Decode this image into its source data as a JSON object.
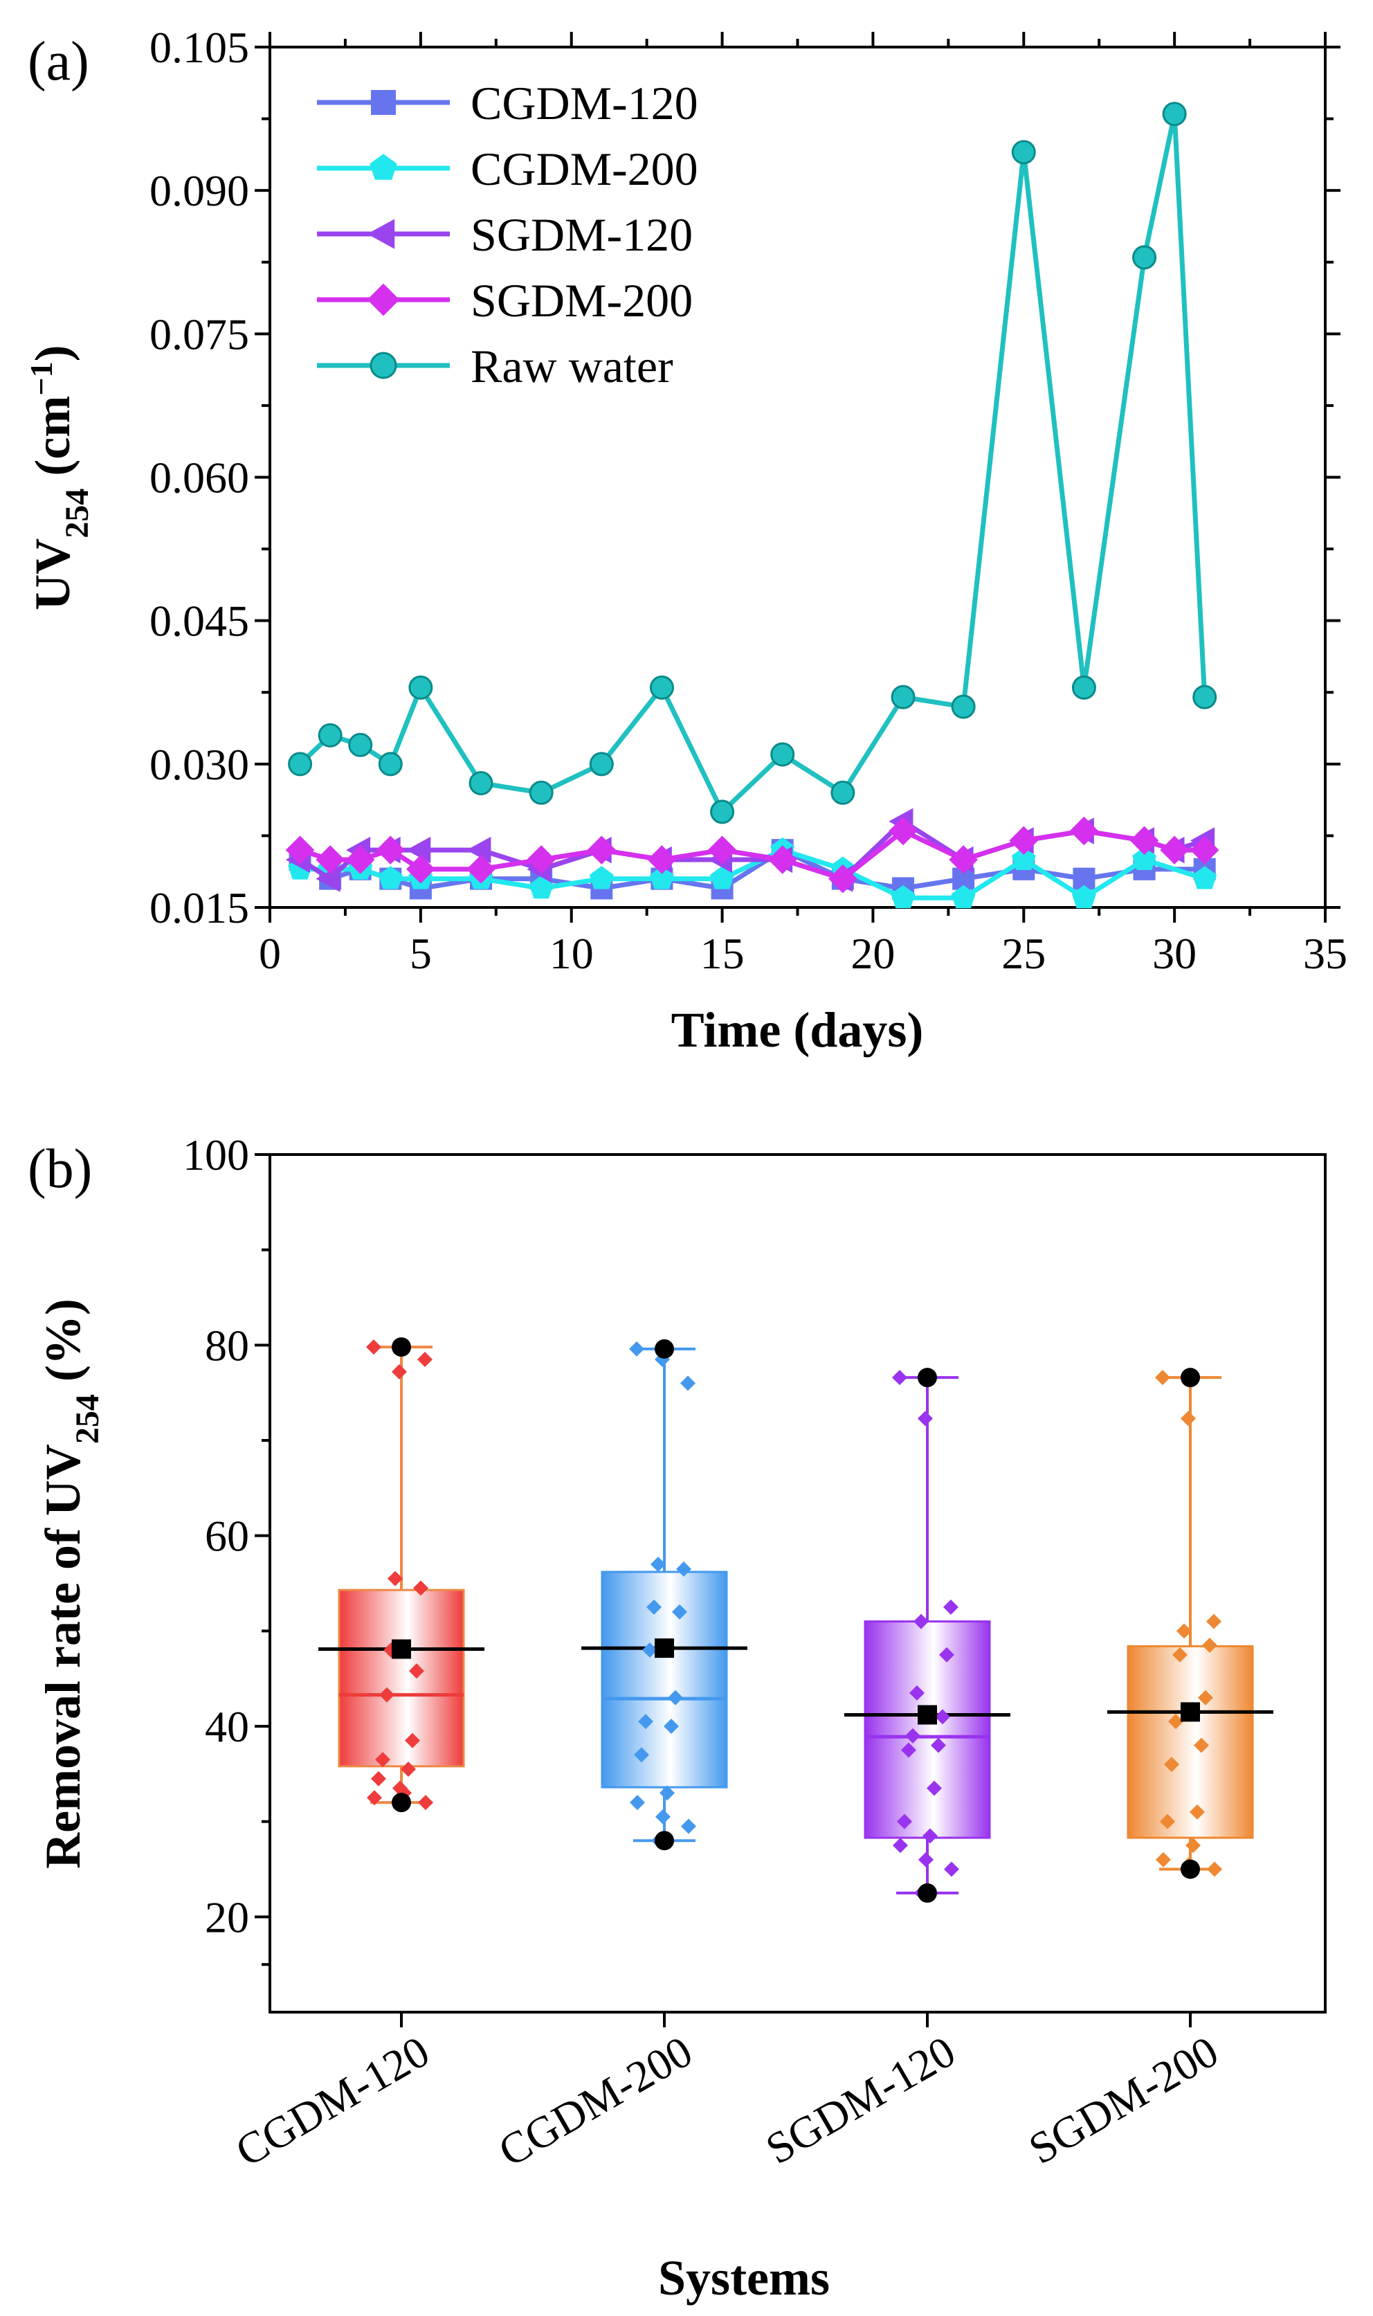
{
  "chart_data": [
    {
      "type": "line",
      "panel_label": "(a)",
      "xlabel": "Time (days)",
      "ylabel": {
        "main": "UV",
        "sub": "254",
        "unit_open": " (cm",
        "unit_sup": "−1",
        "unit_close": ")"
      },
      "xlim": [
        0,
        35
      ],
      "ylim": [
        0.015,
        0.105
      ],
      "xticks": [
        0,
        5,
        10,
        15,
        20,
        25,
        30,
        35
      ],
      "yticks": [
        0.015,
        0.03,
        0.045,
        0.06,
        0.075,
        0.09,
        0.105
      ],
      "ytick_labels": [
        "0.015",
        "0.030",
        "0.045",
        "0.060",
        "0.075",
        "0.090",
        "0.105"
      ],
      "legend_position": "top-left",
      "series": [
        {
          "name": "CGDM-120",
          "color": "#6675ee",
          "marker": "square",
          "x": [
            1,
            2,
            3,
            4,
            5,
            7,
            9,
            11,
            13,
            15,
            17,
            19,
            21,
            23,
            25,
            27,
            29,
            31
          ],
          "y": [
            0.02,
            0.018,
            0.019,
            0.018,
            0.017,
            0.018,
            0.018,
            0.017,
            0.018,
            0.017,
            0.021,
            0.018,
            0.017,
            0.018,
            0.019,
            0.018,
            0.019,
            0.019
          ]
        },
        {
          "name": "CGDM-200",
          "color": "#22e8ee",
          "marker": "pentagon",
          "x": [
            1,
            2,
            3,
            4,
            5,
            7,
            9,
            11,
            13,
            15,
            17,
            19,
            21,
            23,
            25,
            27,
            29,
            31
          ],
          "y": [
            0.019,
            0.019,
            0.019,
            0.018,
            0.018,
            0.018,
            0.017,
            0.018,
            0.018,
            0.018,
            0.021,
            0.019,
            0.016,
            0.016,
            0.02,
            0.016,
            0.02,
            0.018
          ]
        },
        {
          "name": "SGDM-120",
          "color": "#9a44ee",
          "marker": "triangle-left",
          "x": [
            1,
            2,
            3,
            4,
            5,
            7,
            9,
            11,
            13,
            15,
            17,
            19,
            21,
            23,
            25,
            27,
            29,
            30,
            31
          ],
          "y": [
            0.02,
            0.018,
            0.021,
            0.021,
            0.021,
            0.021,
            0.019,
            0.021,
            0.02,
            0.02,
            0.02,
            0.018,
            0.024,
            0.02,
            0.022,
            0.023,
            0.022,
            0.021,
            0.022
          ]
        },
        {
          "name": "SGDM-200",
          "color": "#d530ee",
          "marker": "diamond",
          "x": [
            1,
            2,
            3,
            4,
            5,
            7,
            9,
            11,
            13,
            15,
            17,
            19,
            21,
            23,
            25,
            27,
            29,
            30,
            31
          ],
          "y": [
            0.021,
            0.02,
            0.02,
            0.021,
            0.019,
            0.019,
            0.02,
            0.021,
            0.02,
            0.021,
            0.02,
            0.018,
            0.023,
            0.02,
            0.022,
            0.023,
            0.022,
            0.021,
            0.021
          ]
        },
        {
          "name": "Raw water",
          "color": "#20c0c0",
          "marker": "circle",
          "x": [
            1,
            2,
            3,
            4,
            5,
            7,
            9,
            11,
            13,
            15,
            17,
            19,
            21,
            23,
            25,
            27,
            29,
            30,
            31
          ],
          "y": [
            0.03,
            0.033,
            0.032,
            0.03,
            0.038,
            0.028,
            0.027,
            0.03,
            0.038,
            0.025,
            0.031,
            0.027,
            0.037,
            0.036,
            0.094,
            0.038,
            0.083,
            0.098,
            0.037
          ]
        }
      ]
    },
    {
      "type": "box",
      "panel_label": "(b)",
      "xlabel": "Systems",
      "ylabel": {
        "main": "Removal rate of UV",
        "sub": "254",
        "unit_open": " (%)"
      },
      "ylim": [
        10,
        100
      ],
      "yticks": [
        20,
        40,
        60,
        80,
        100
      ],
      "categories": [
        "CGDM-120",
        "CGDM-200",
        "SGDM-120",
        "SGDM-200"
      ],
      "boxes": [
        {
          "name": "CGDM-120",
          "color": "#ee3b3b",
          "whisker_color": "#ee8844",
          "min": 32,
          "q1": 35.8,
          "median": 43.3,
          "mean": 48.1,
          "q3": 54.3,
          "max": 79.8,
          "points": [
            79.8,
            77.2,
            78.5,
            55.5,
            54.5,
            48.0,
            45.8,
            43.3,
            38.5,
            36.5,
            35.5,
            34.5,
            33.0,
            32.5,
            33.5,
            32.0
          ]
        },
        {
          "name": "CGDM-200",
          "color": "#4499ee",
          "whisker_color": "#4499ee",
          "min": 28,
          "q1": 33.6,
          "median": 42.9,
          "mean": 48.2,
          "q3": 56.2,
          "max": 79.6,
          "points": [
            79.6,
            78.5,
            76.0,
            57.0,
            56.5,
            52.5,
            52.0,
            48.0,
            43.0,
            40.5,
            40.0,
            37.0,
            33.0,
            32.0,
            30.5,
            29.5,
            28.0
          ]
        },
        {
          "name": "SGDM-120",
          "color": "#9933ee",
          "whisker_color": "#9933ee",
          "min": 22.5,
          "q1": 28.3,
          "median": 38.9,
          "mean": 41.2,
          "q3": 51.0,
          "max": 76.6,
          "points": [
            76.6,
            72.3,
            52.5,
            51.0,
            47.5,
            43.5,
            41.0,
            39.0,
            38.0,
            37.5,
            33.5,
            30.0,
            28.5,
            27.5,
            26.0,
            25.0,
            22.5
          ]
        },
        {
          "name": "SGDM-200",
          "color": "#ee8833",
          "whisker_color": "#ee8833",
          "min": 25,
          "q1": 28.3,
          "median": 41.5,
          "mean": 41.5,
          "q3": 48.4,
          "max": 76.6,
          "points": [
            76.6,
            72.3,
            51.0,
            50.0,
            48.5,
            47.5,
            43.0,
            40.5,
            38.0,
            36.0,
            31.0,
            30.0,
            27.5,
            26.0,
            25.5,
            25.0
          ]
        }
      ]
    }
  ]
}
